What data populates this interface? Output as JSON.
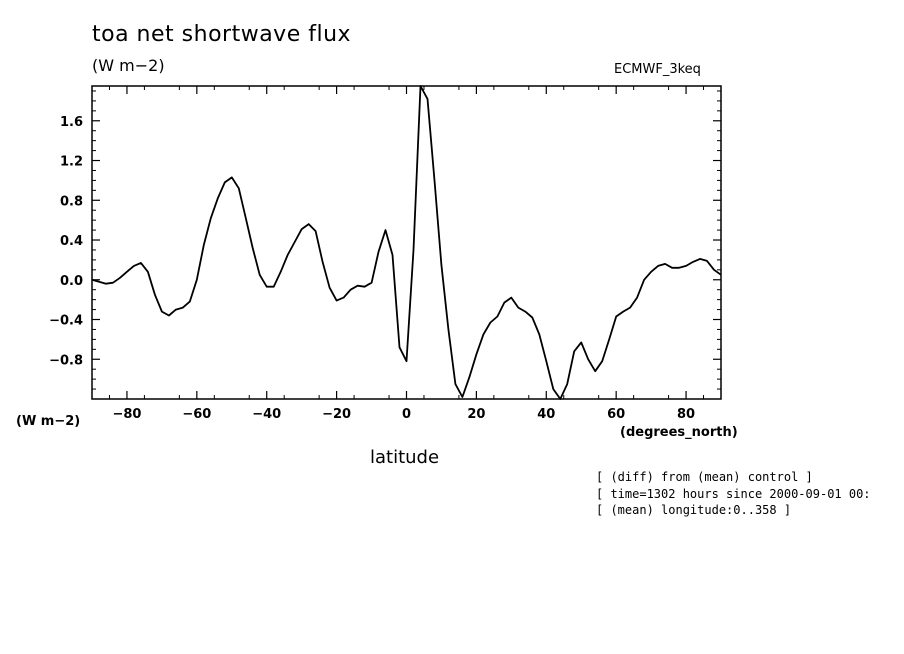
{
  "chart_data": {
    "type": "line",
    "title": "toa net shortwave flux",
    "units": "(W m−2)",
    "y_units_label": "(W m−2)",
    "dataset_label": "ECMWF_3keq",
    "xlabel": "latitude",
    "x_units_label": "(degrees_north)",
    "xlim": [
      -90,
      90
    ],
    "ylim": [
      -1.2,
      1.95
    ],
    "x_ticks": [
      -80,
      -60,
      -40,
      -20,
      0,
      20,
      40,
      60,
      80
    ],
    "y_ticks": [
      -0.8,
      -0.4,
      0.0,
      0.4,
      0.8,
      1.2,
      1.6
    ],
    "x_tick_labels": [
      "−80",
      "−60",
      "−40",
      "−20",
      "0",
      "20",
      "40",
      "60",
      "80"
    ],
    "y_tick_labels": [
      "−0.8",
      "−0.4",
      "0.0",
      "0.4",
      "0.8",
      "1.2",
      "1.6"
    ],
    "grid": false,
    "series": [
      {
        "x": [
          -90,
          -88,
          -86,
          -84,
          -82,
          -80,
          -78,
          -76,
          -74,
          -72,
          -70,
          -68,
          -66,
          -64,
          -62,
          -60,
          -58,
          -56,
          -54,
          -52,
          -50,
          -48,
          -46,
          -44,
          -42,
          -40,
          -38,
          -36,
          -34,
          -32,
          -30,
          -28,
          -26,
          -24,
          -22,
          -20,
          -18,
          -16,
          -14,
          -12,
          -10,
          -8,
          -6,
          -4,
          -2,
          0,
          2,
          4,
          6,
          8,
          10,
          12,
          14,
          16,
          18,
          20,
          22,
          24,
          26,
          28,
          30,
          32,
          34,
          36,
          38,
          40,
          42,
          44,
          46,
          48,
          50,
          52,
          54,
          56,
          58,
          60,
          62,
          64,
          66,
          68,
          70,
          72,
          74,
          76,
          78,
          80,
          82,
          84,
          86,
          88,
          90
        ],
        "y": [
          0.0,
          -0.02,
          -0.04,
          -0.03,
          0.02,
          0.08,
          0.14,
          0.17,
          0.08,
          -0.15,
          -0.32,
          -0.36,
          -0.3,
          -0.28,
          -0.22,
          0.0,
          0.35,
          0.62,
          0.82,
          0.98,
          1.03,
          0.92,
          0.62,
          0.32,
          0.05,
          -0.07,
          -0.07,
          0.08,
          0.25,
          0.38,
          0.51,
          0.56,
          0.49,
          0.18,
          -0.08,
          -0.21,
          -0.18,
          -0.1,
          -0.06,
          -0.07,
          -0.03,
          0.28,
          0.5,
          0.25,
          -0.68,
          -0.82,
          0.3,
          1.95,
          1.82,
          1.0,
          0.15,
          -0.5,
          -1.05,
          -1.18,
          -0.98,
          -0.75,
          -0.55,
          -0.43,
          -0.37,
          -0.23,
          -0.18,
          -0.28,
          -0.32,
          -0.38,
          -0.55,
          -0.82,
          -1.1,
          -1.2,
          -1.05,
          -0.72,
          -0.63,
          -0.8,
          -0.92,
          -0.82,
          -0.6,
          -0.37,
          -0.32,
          -0.28,
          -0.18,
          0.0,
          0.08,
          0.14,
          0.16,
          0.12,
          0.12,
          0.14,
          0.18,
          0.21,
          0.19,
          0.1,
          0.05
        ]
      }
    ]
  },
  "info_lines": [
    "[ (diff) from (mean) control ]",
    "[ time=1302 hours since 2000-09-01 00:",
    "[ (mean) longitude:0..358 ]"
  ]
}
